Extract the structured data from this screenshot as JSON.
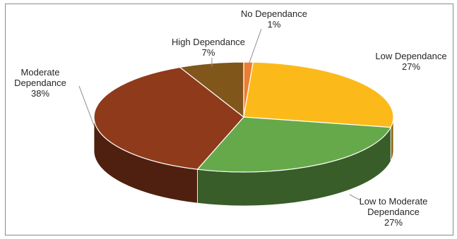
{
  "chart_data": {
    "type": "pie",
    "style": "3d",
    "title": "",
    "slices": [
      {
        "label_lines": [
          "No Dependance"
        ],
        "value": 1,
        "value_label": "1%",
        "color": "#ed7d31"
      },
      {
        "label_lines": [
          "Low Dependance"
        ],
        "value": 27,
        "value_label": "27%",
        "color": "#fbba19"
      },
      {
        "label_lines": [
          "Low to Moderate",
          "Dependance"
        ],
        "value": 27,
        "value_label": "27%",
        "color": "#66a94a"
      },
      {
        "label_lines": [
          "Moderate",
          "Dependance"
        ],
        "value": 38,
        "value_label": "38%",
        "color": "#8f3a1b"
      },
      {
        "label_lines": [
          "High Dependance"
        ],
        "value": 7,
        "value_label": "7%",
        "color": "#80561b"
      }
    ],
    "legend": "none",
    "data_labels": "outside-with-leader-lines"
  }
}
